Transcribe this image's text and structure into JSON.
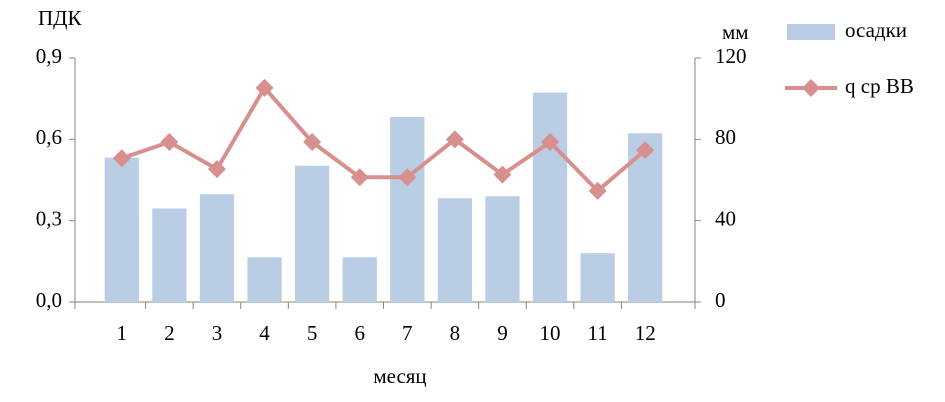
{
  "chart_data": {
    "type": "combo",
    "y_label": "ПДК",
    "y2_label": "мм",
    "x_label": "месяц",
    "categories": [
      "1",
      "2",
      "3",
      "4",
      "5",
      "6",
      "7",
      "8",
      "9",
      "10",
      "11",
      "12"
    ],
    "series": [
      {
        "name": "осадки",
        "type": "bar",
        "axis": "y2",
        "color": "#b9cde5",
        "values": [
          71,
          46,
          53,
          22,
          67,
          22,
          91,
          51,
          52,
          103,
          24,
          83
        ]
      },
      {
        "name": "q ср ВВ",
        "type": "line",
        "color": "#d8908f",
        "values": [
          0.53,
          0.59,
          0.49,
          0.79,
          0.59,
          0.46,
          0.46,
          0.6,
          0.47,
          0.59,
          0.41,
          0.56
        ]
      }
    ],
    "ylim": [
      0,
      0.9
    ],
    "yticks": [
      {
        "value": 0,
        "label": "0,0"
      },
      {
        "value": 0.3,
        "label": "0,3"
      },
      {
        "value": 0.6,
        "label": "0,6"
      },
      {
        "value": 0.9,
        "label": "0,9"
      }
    ],
    "y2lim": [
      0,
      120
    ],
    "y2ticks": [
      0,
      40,
      80,
      120
    ],
    "legend": "right"
  }
}
